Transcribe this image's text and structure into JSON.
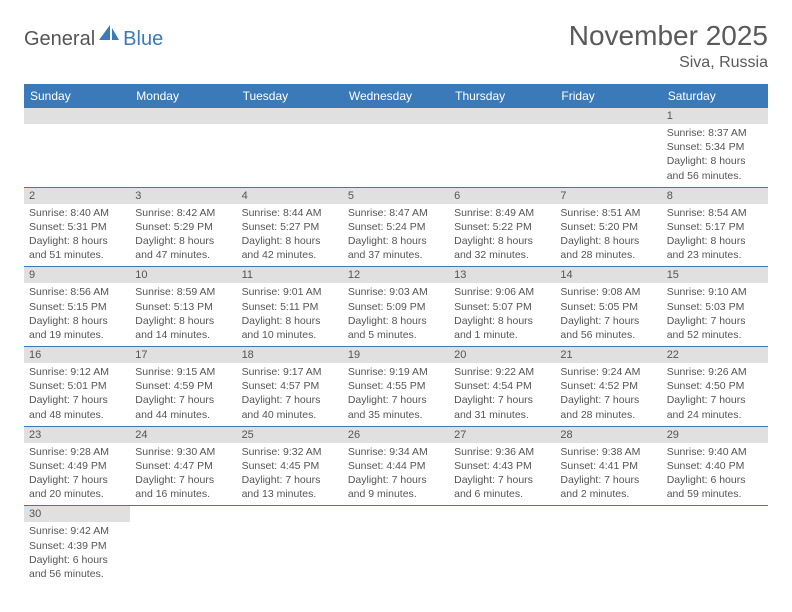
{
  "logo": {
    "general": "General",
    "blue": "Blue"
  },
  "title": "November 2025",
  "location": "Siva, Russia",
  "day_headers": [
    "Sunday",
    "Monday",
    "Tuesday",
    "Wednesday",
    "Thursday",
    "Friday",
    "Saturday"
  ],
  "colors": {
    "header_bg": "#3b7ab8",
    "header_text": "#ffffff",
    "daynum_bg": "#e0e0e0",
    "text": "#555555",
    "row_border": "#3b7ab8",
    "page_bg": "#ffffff"
  },
  "weeks": [
    [
      {
        "empty": true
      },
      {
        "empty": true
      },
      {
        "empty": true
      },
      {
        "empty": true
      },
      {
        "empty": true
      },
      {
        "empty": true
      },
      {
        "n": "1",
        "sunrise": "8:37 AM",
        "sunset": "5:34 PM",
        "daylight": "8 hours and 56 minutes."
      }
    ],
    [
      {
        "n": "2",
        "sunrise": "8:40 AM",
        "sunset": "5:31 PM",
        "daylight": "8 hours and 51 minutes."
      },
      {
        "n": "3",
        "sunrise": "8:42 AM",
        "sunset": "5:29 PM",
        "daylight": "8 hours and 47 minutes."
      },
      {
        "n": "4",
        "sunrise": "8:44 AM",
        "sunset": "5:27 PM",
        "daylight": "8 hours and 42 minutes."
      },
      {
        "n": "5",
        "sunrise": "8:47 AM",
        "sunset": "5:24 PM",
        "daylight": "8 hours and 37 minutes."
      },
      {
        "n": "6",
        "sunrise": "8:49 AM",
        "sunset": "5:22 PM",
        "daylight": "8 hours and 32 minutes."
      },
      {
        "n": "7",
        "sunrise": "8:51 AM",
        "sunset": "5:20 PM",
        "daylight": "8 hours and 28 minutes."
      },
      {
        "n": "8",
        "sunrise": "8:54 AM",
        "sunset": "5:17 PM",
        "daylight": "8 hours and 23 minutes."
      }
    ],
    [
      {
        "n": "9",
        "sunrise": "8:56 AM",
        "sunset": "5:15 PM",
        "daylight": "8 hours and 19 minutes."
      },
      {
        "n": "10",
        "sunrise": "8:59 AM",
        "sunset": "5:13 PM",
        "daylight": "8 hours and 14 minutes."
      },
      {
        "n": "11",
        "sunrise": "9:01 AM",
        "sunset": "5:11 PM",
        "daylight": "8 hours and 10 minutes."
      },
      {
        "n": "12",
        "sunrise": "9:03 AM",
        "sunset": "5:09 PM",
        "daylight": "8 hours and 5 minutes."
      },
      {
        "n": "13",
        "sunrise": "9:06 AM",
        "sunset": "5:07 PM",
        "daylight": "8 hours and 1 minute."
      },
      {
        "n": "14",
        "sunrise": "9:08 AM",
        "sunset": "5:05 PM",
        "daylight": "7 hours and 56 minutes."
      },
      {
        "n": "15",
        "sunrise": "9:10 AM",
        "sunset": "5:03 PM",
        "daylight": "7 hours and 52 minutes."
      }
    ],
    [
      {
        "n": "16",
        "sunrise": "9:12 AM",
        "sunset": "5:01 PM",
        "daylight": "7 hours and 48 minutes."
      },
      {
        "n": "17",
        "sunrise": "9:15 AM",
        "sunset": "4:59 PM",
        "daylight": "7 hours and 44 minutes."
      },
      {
        "n": "18",
        "sunrise": "9:17 AM",
        "sunset": "4:57 PM",
        "daylight": "7 hours and 40 minutes."
      },
      {
        "n": "19",
        "sunrise": "9:19 AM",
        "sunset": "4:55 PM",
        "daylight": "7 hours and 35 minutes."
      },
      {
        "n": "20",
        "sunrise": "9:22 AM",
        "sunset": "4:54 PM",
        "daylight": "7 hours and 31 minutes."
      },
      {
        "n": "21",
        "sunrise": "9:24 AM",
        "sunset": "4:52 PM",
        "daylight": "7 hours and 28 minutes."
      },
      {
        "n": "22",
        "sunrise": "9:26 AM",
        "sunset": "4:50 PM",
        "daylight": "7 hours and 24 minutes."
      }
    ],
    [
      {
        "n": "23",
        "sunrise": "9:28 AM",
        "sunset": "4:49 PM",
        "daylight": "7 hours and 20 minutes."
      },
      {
        "n": "24",
        "sunrise": "9:30 AM",
        "sunset": "4:47 PM",
        "daylight": "7 hours and 16 minutes."
      },
      {
        "n": "25",
        "sunrise": "9:32 AM",
        "sunset": "4:45 PM",
        "daylight": "7 hours and 13 minutes."
      },
      {
        "n": "26",
        "sunrise": "9:34 AM",
        "sunset": "4:44 PM",
        "daylight": "7 hours and 9 minutes."
      },
      {
        "n": "27",
        "sunrise": "9:36 AM",
        "sunset": "4:43 PM",
        "daylight": "7 hours and 6 minutes."
      },
      {
        "n": "28",
        "sunrise": "9:38 AM",
        "sunset": "4:41 PM",
        "daylight": "7 hours and 2 minutes."
      },
      {
        "n": "29",
        "sunrise": "9:40 AM",
        "sunset": "4:40 PM",
        "daylight": "6 hours and 59 minutes."
      }
    ],
    [
      {
        "n": "30",
        "sunrise": "9:42 AM",
        "sunset": "4:39 PM",
        "daylight": "6 hours and 56 minutes."
      },
      {
        "empty": true
      },
      {
        "empty": true
      },
      {
        "empty": true
      },
      {
        "empty": true
      },
      {
        "empty": true
      },
      {
        "empty": true
      }
    ]
  ]
}
